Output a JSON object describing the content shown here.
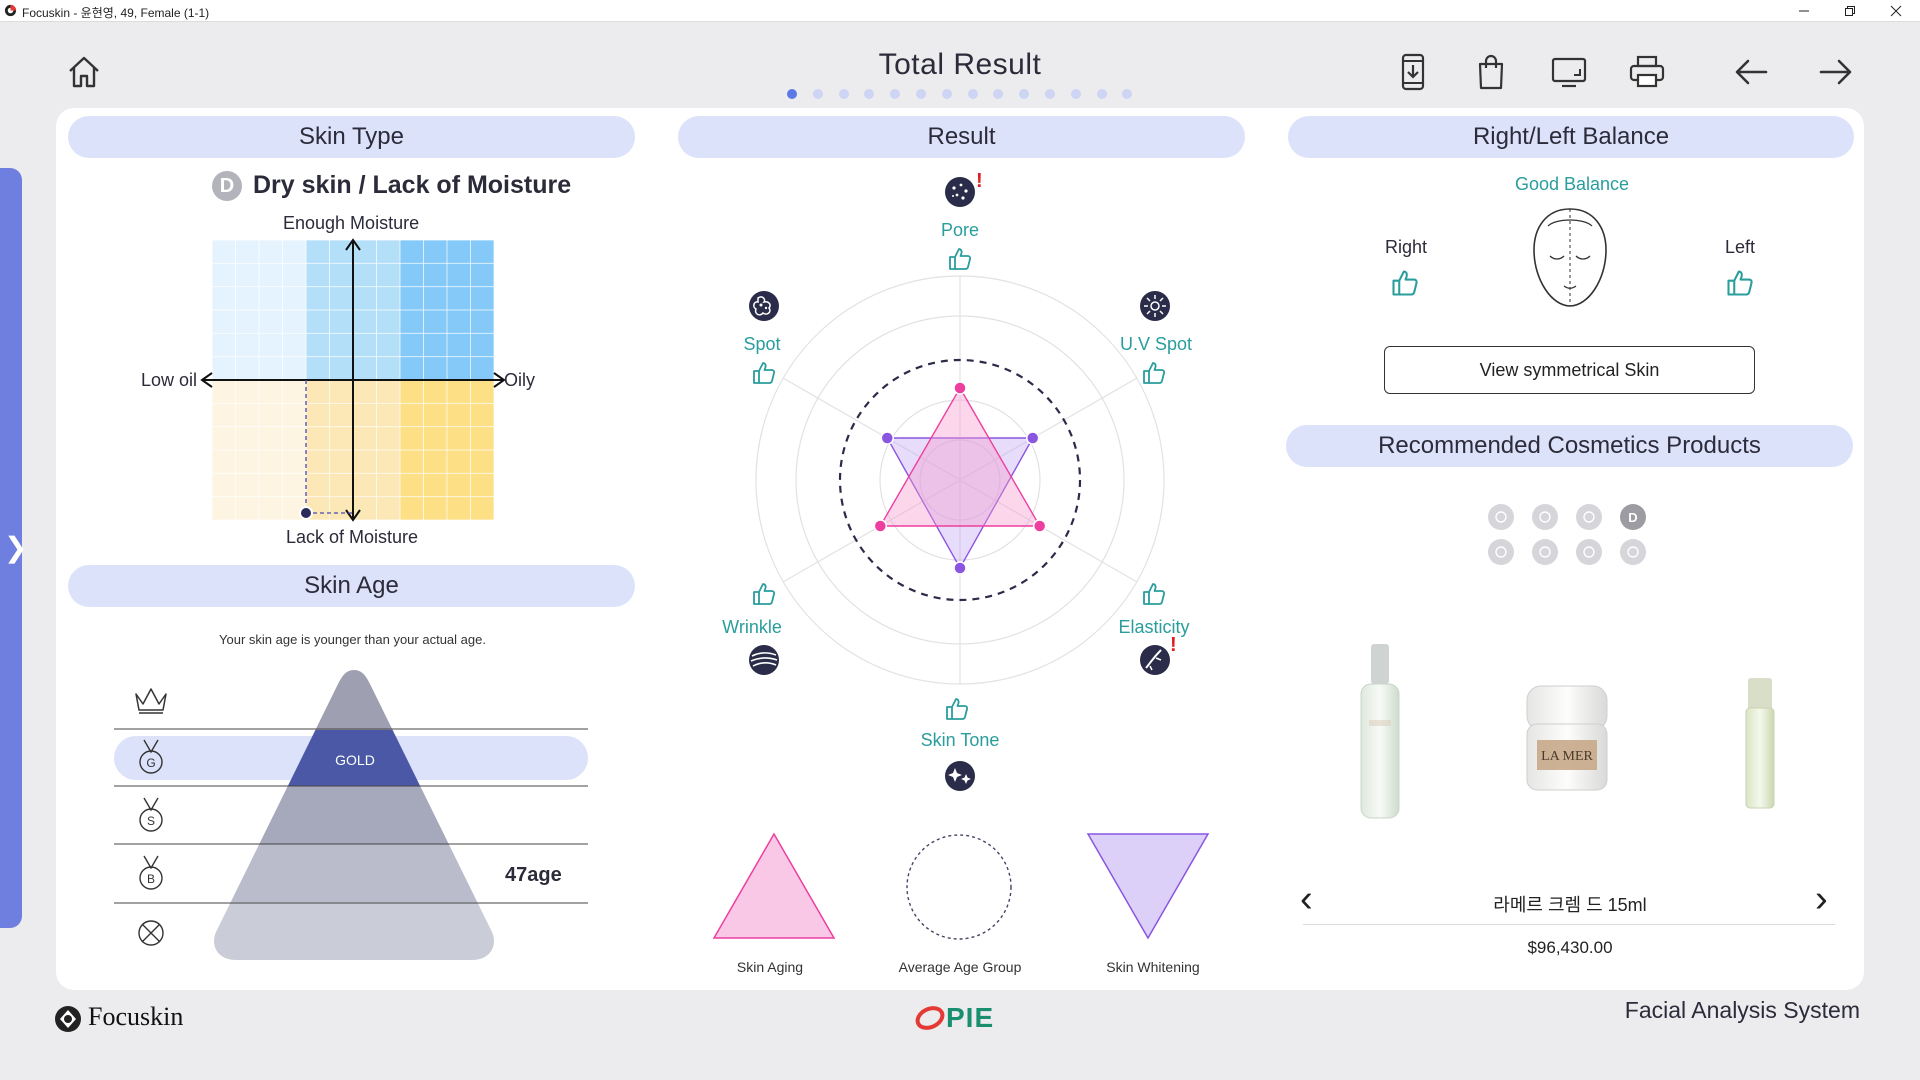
{
  "window": {
    "title": "Focuskin - 윤현영, 49, Female (1-1)"
  },
  "header": {
    "title": "Total Result",
    "page_dot_count": 14,
    "active_page_index": 0
  },
  "skin_type": {
    "heading": "Skin Type",
    "badge": "D",
    "type_name": "Dry skin / Lack of Moisture",
    "axis_top": "Enough Moisture",
    "axis_bottom": "Lack of Moisture",
    "axis_left": "Low oil",
    "axis_right": "Oily",
    "point": {
      "oil": -1,
      "moisture": -3
    }
  },
  "skin_age": {
    "heading": "Skin Age",
    "message": "Your skin age is younger than your actual age.",
    "levels": [
      {
        "icon": "crown-icon",
        "label": ""
      },
      {
        "icon": "medal-icon",
        "letter": "G",
        "label": "GOLD"
      },
      {
        "icon": "medal-icon",
        "letter": "S",
        "label": ""
      },
      {
        "icon": "medal-icon",
        "letter": "B",
        "label": ""
      },
      {
        "icon": "none-icon",
        "label": ""
      }
    ],
    "current_level_index": 1,
    "age_value": "47age",
    "age_row_index": 3
  },
  "result": {
    "heading": "Result",
    "items": [
      {
        "label": "Pore",
        "icon": "pore-icon",
        "warning": true
      },
      {
        "label": "U.V Spot",
        "icon": "uv-spot-icon",
        "warning": false
      },
      {
        "label": "Elasticity",
        "icon": "elasticity-icon",
        "warning": true
      },
      {
        "label": "Skin Tone",
        "icon": "skin-tone-icon",
        "warning": false
      },
      {
        "label": "Wrinkle",
        "icon": "wrinkle-icon",
        "warning": false
      },
      {
        "label": "Spot",
        "icon": "spot-icon",
        "warning": false
      }
    ],
    "legend": [
      {
        "label": "Skin Aging",
        "shape": "triangle-up",
        "color": "#f8c8e6"
      },
      {
        "label": "Average Age Group",
        "shape": "dashed-circle",
        "color": "#444466"
      },
      {
        "label": "Skin Whitening",
        "shape": "triangle-down",
        "color": "#dcd0f8"
      }
    ],
    "colors": {
      "aging": "#ee3ea0",
      "whitening": "#8a55e0",
      "average": "#2b2b4a"
    }
  },
  "balance": {
    "heading": "Right/Left Balance",
    "status": "Good Balance",
    "right_label": "Right",
    "left_label": "Left",
    "button_label": "View symmetrical Skin"
  },
  "cosmetics": {
    "heading": "Recommended Cosmetics Products",
    "filter_icons": [
      {
        "icon": "pore-icon",
        "active": false
      },
      {
        "icon": "wrinkle-icon",
        "active": false
      },
      {
        "icon": "elasticity-icon",
        "active": false
      },
      {
        "icon": "dry-icon",
        "letter": "D",
        "active": true
      },
      {
        "icon": "uv-spot-icon",
        "active": false
      },
      {
        "icon": "spot-icon",
        "active": false
      },
      {
        "icon": "skin-tone-icon",
        "active": false
      },
      {
        "icon": "moisture-drop-icon",
        "active": false
      }
    ],
    "product_name": "라메르 크렘 드 15ml",
    "product_price": "$96,430.00",
    "product_images": [
      "bottle-tall",
      "cream-jar",
      "bottle-small"
    ],
    "jar_text": "LA MER"
  },
  "footer": {
    "brand_left": "Focuskin",
    "brand_center": "PIE",
    "right_text": "Facial Analysis System"
  }
}
